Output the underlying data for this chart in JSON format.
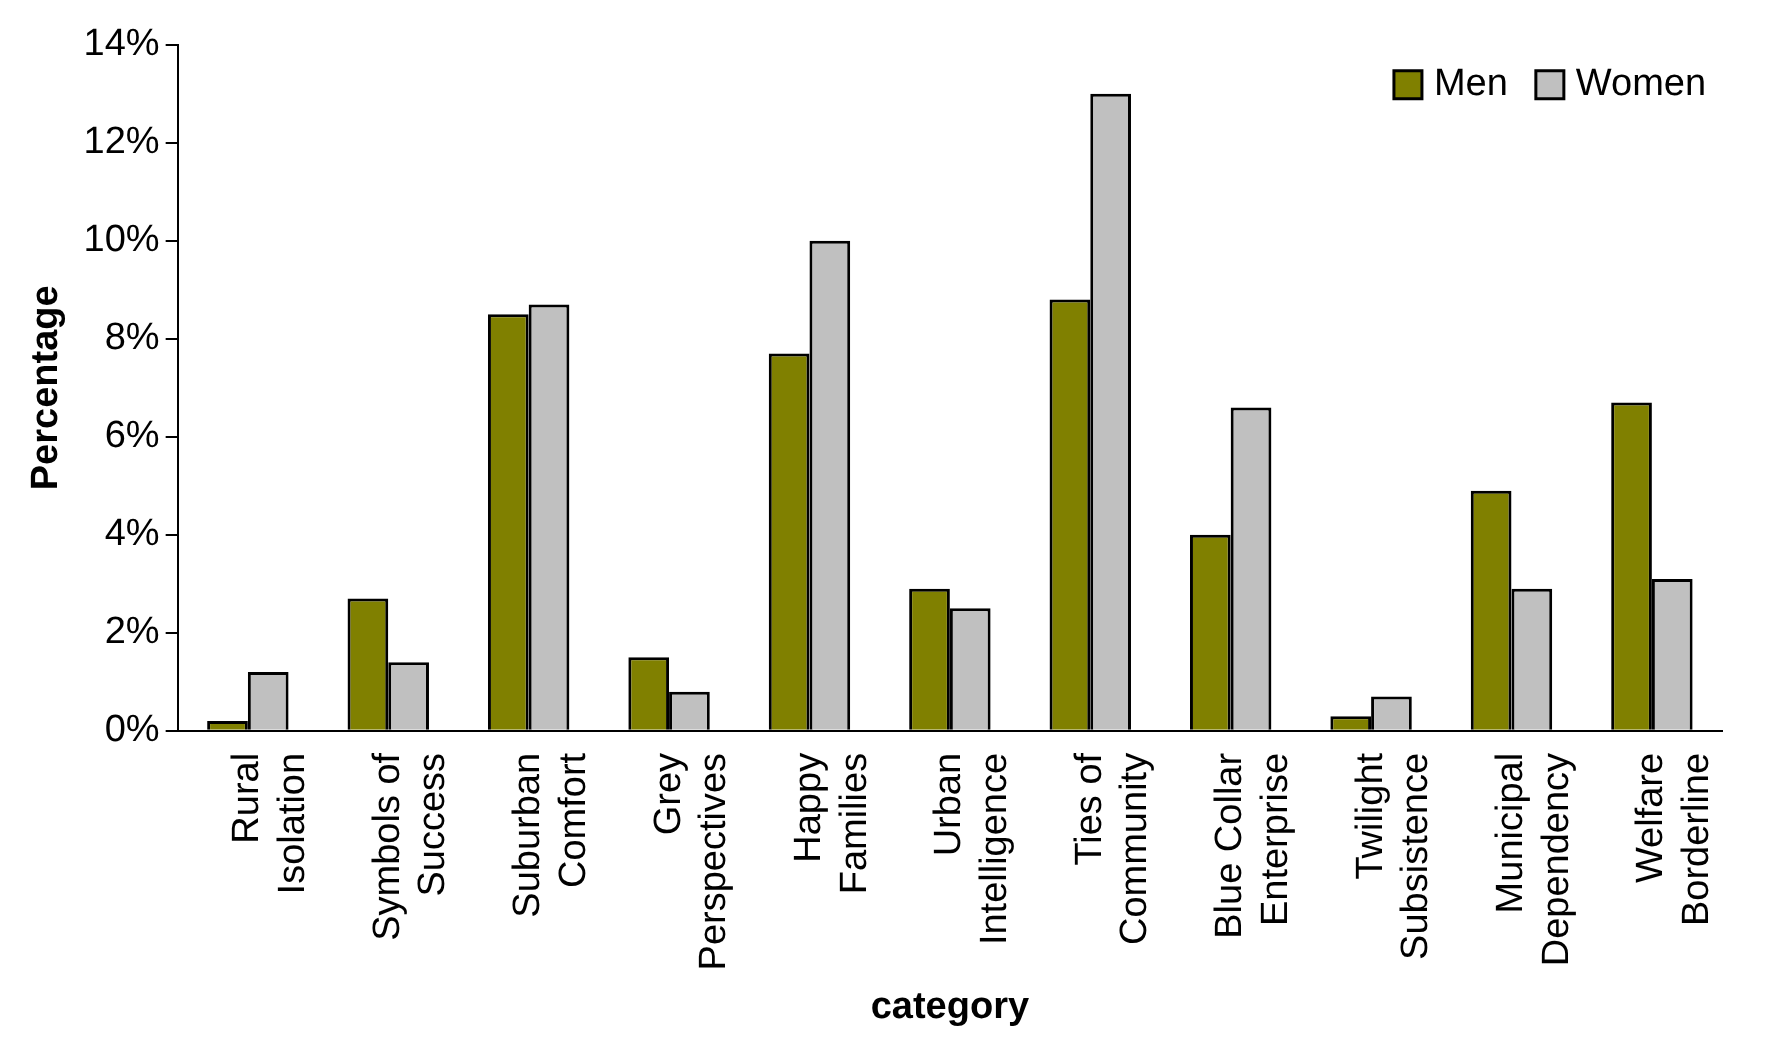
{
  "chart_data": {
    "type": "bar",
    "xlabel": "category",
    "ylabel": "Percentage",
    "categories": [
      "Rural Isolation",
      "Symbols of Success",
      "Suburban Comfort",
      "Grey Perspectives",
      "Happy Families",
      "Urban Intelligence",
      "Ties of Community",
      "Blue Collar Enterprise",
      "Twilight Subsistence",
      "Municipal Dependency",
      "Welfare Borderline"
    ],
    "series": [
      {
        "name": "Men",
        "color": "#808000",
        "values": [
          0.2,
          2.7,
          8.5,
          1.5,
          7.7,
          2.9,
          8.8,
          4.0,
          0.3,
          4.9,
          6.7
        ]
      },
      {
        "name": "Women",
        "color": "#c0c0c0",
        "values": [
          1.2,
          1.4,
          8.7,
          0.8,
          10.0,
          2.5,
          13.0,
          6.6,
          0.7,
          2.9,
          3.1
        ]
      }
    ],
    "ylim": [
      0,
      14
    ],
    "yticks": [
      {
        "value": 0,
        "label": "0%"
      },
      {
        "value": 2,
        "label": "2%"
      },
      {
        "value": 4,
        "label": "4%"
      },
      {
        "value": 6,
        "label": "6%"
      },
      {
        "value": 8,
        "label": "8%"
      },
      {
        "value": 10,
        "label": "10%"
      },
      {
        "value": 12,
        "label": "12%"
      },
      {
        "value": 14,
        "label": "14%"
      }
    ],
    "grid": false,
    "legend": "top right"
  }
}
